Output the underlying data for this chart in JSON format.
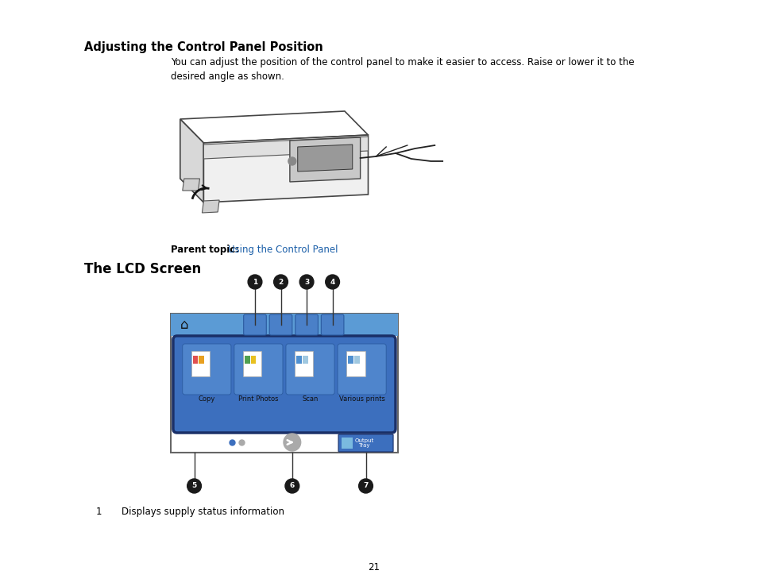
{
  "title1": "Adjusting the Control Panel Position",
  "body_text": "You can adjust the position of the control panel to make it easier to access. Raise or lower it to the\ndesired angle as shown.",
  "parent_topic_label": "Parent topic:",
  "parent_topic_link": "Using the Control Panel",
  "title2": "The LCD Screen",
  "list_number": "1",
  "list_text": "Displays supply status information",
  "page_number": "21",
  "bg_color": "#ffffff",
  "text_color": "#000000",
  "link_color": "#1a5ea8",
  "title1_fontsize": 10.5,
  "title2_fontsize": 12,
  "body_fontsize": 8.5,
  "small_fontsize": 7.0,
  "tile_label_fontsize": 6.0,
  "icon_bar_color": "#5b9bd5",
  "screen_border_color": "#555555",
  "app_area_color": "#3c6fbe",
  "tile_color": "#4f85cc",
  "tile_border_color": "#2a5a9f",
  "output_tray_color": "#3c6fbe",
  "callout_circle_color": "#1a1a1a",
  "tile_labels": [
    "Copy",
    "Print Photos",
    "Scan",
    "Various prints"
  ]
}
